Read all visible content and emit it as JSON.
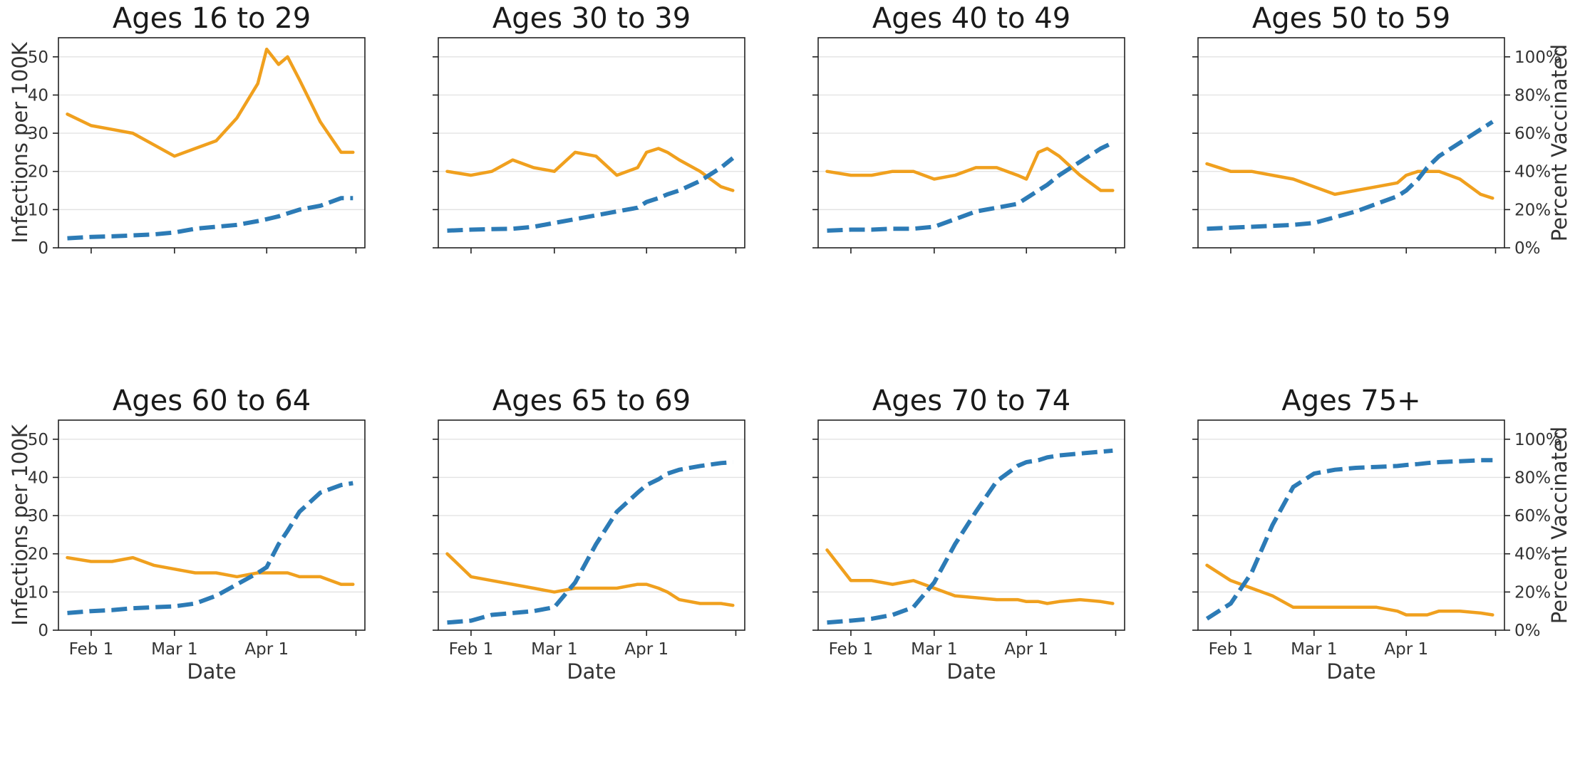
{
  "figure": {
    "left_axis_label": "Infections per 100K",
    "right_axis_label": "Percent Vaccinated",
    "x_axis_label": "Date",
    "x_tick_labels": [
      "Feb 1",
      "Mar 1",
      "Apr 1"
    ],
    "colors": {
      "infections": "#f0a01e",
      "vaccinated": "#2c7bb6"
    }
  },
  "chart_data": [
    {
      "type": "line",
      "title": "Ages 16 to 29",
      "x": [
        "2021-01-24",
        "2021-02-01",
        "2021-02-08",
        "2021-02-15",
        "2021-02-22",
        "2021-03-01",
        "2021-03-08",
        "2021-03-15",
        "2021-03-22",
        "2021-03-29",
        "2021-04-01",
        "2021-04-05",
        "2021-04-08",
        "2021-04-12",
        "2021-04-19",
        "2021-04-26",
        "2021-04-30"
      ],
      "series": [
        {
          "axis": "left",
          "y": [
            35,
            32,
            31,
            30,
            27,
            24,
            26,
            28,
            34,
            43,
            52,
            48,
            50,
            44,
            33,
            25,
            25
          ]
        },
        {
          "axis": "right",
          "y": [
            5,
            5.7,
            6,
            6.5,
            7,
            8,
            10,
            11,
            12,
            14,
            15,
            16.5,
            18,
            20,
            22,
            26,
            26
          ]
        }
      ]
    },
    {
      "type": "line",
      "title": "Ages 30 to 39",
      "x": [
        "2021-01-24",
        "2021-02-01",
        "2021-02-08",
        "2021-02-15",
        "2021-02-22",
        "2021-03-01",
        "2021-03-08",
        "2021-03-15",
        "2021-03-22",
        "2021-03-29",
        "2021-04-01",
        "2021-04-05",
        "2021-04-08",
        "2021-04-12",
        "2021-04-19",
        "2021-04-26",
        "2021-04-30"
      ],
      "series": [
        {
          "axis": "left",
          "y": [
            20,
            19,
            20,
            23,
            21,
            20,
            25,
            24,
            19,
            21,
            25,
            26,
            25,
            23,
            20,
            16,
            15
          ]
        },
        {
          "axis": "right",
          "y": [
            9,
            9.5,
            9.8,
            10,
            11,
            13,
            15,
            17,
            19,
            21,
            24,
            26,
            28,
            30,
            35,
            42,
            47
          ]
        }
      ]
    },
    {
      "type": "line",
      "title": "Ages 40 to 49",
      "x": [
        "2021-01-24",
        "2021-02-01",
        "2021-02-08",
        "2021-02-15",
        "2021-02-22",
        "2021-03-01",
        "2021-03-08",
        "2021-03-15",
        "2021-03-22",
        "2021-03-29",
        "2021-04-01",
        "2021-04-05",
        "2021-04-08",
        "2021-04-12",
        "2021-04-19",
        "2021-04-26",
        "2021-04-30"
      ],
      "series": [
        {
          "axis": "left",
          "y": [
            20,
            19,
            19,
            20,
            20,
            18,
            19,
            21,
            21,
            19,
            18,
            25,
            26,
            24,
            19,
            15,
            15
          ]
        },
        {
          "axis": "right",
          "y": [
            9,
            9.5,
            9.5,
            10,
            10,
            11,
            15,
            19,
            21,
            23,
            26,
            30,
            33,
            38,
            45,
            52,
            55
          ]
        }
      ]
    },
    {
      "type": "line",
      "title": "Ages 50 to 59",
      "x": [
        "2021-01-24",
        "2021-02-01",
        "2021-02-08",
        "2021-02-15",
        "2021-02-22",
        "2021-03-01",
        "2021-03-08",
        "2021-03-15",
        "2021-03-22",
        "2021-03-29",
        "2021-04-01",
        "2021-04-05",
        "2021-04-08",
        "2021-04-12",
        "2021-04-19",
        "2021-04-26",
        "2021-04-30"
      ],
      "series": [
        {
          "axis": "left",
          "y": [
            22,
            20,
            20,
            19,
            18,
            16,
            14,
            15,
            16,
            17,
            19,
            20,
            20,
            20,
            18,
            14,
            13
          ]
        },
        {
          "axis": "right",
          "y": [
            10,
            10.5,
            11,
            11.5,
            12,
            13,
            16,
            19,
            23,
            27,
            30,
            36,
            42,
            48,
            55,
            62,
            66
          ]
        }
      ]
    },
    {
      "type": "line",
      "title": "Ages 60 to 64",
      "x": [
        "2021-01-24",
        "2021-02-01",
        "2021-02-08",
        "2021-02-15",
        "2021-02-22",
        "2021-03-01",
        "2021-03-08",
        "2021-03-15",
        "2021-03-22",
        "2021-03-29",
        "2021-04-01",
        "2021-04-05",
        "2021-04-08",
        "2021-04-12",
        "2021-04-19",
        "2021-04-26",
        "2021-04-30"
      ],
      "series": [
        {
          "axis": "left",
          "y": [
            19,
            18,
            18,
            19,
            17,
            16,
            15,
            15,
            14,
            15,
            15,
            15,
            15,
            14,
            14,
            12,
            12
          ]
        },
        {
          "axis": "right",
          "y": [
            9,
            10,
            10.5,
            11.5,
            12,
            12.5,
            14,
            18,
            24,
            30,
            33,
            45,
            52,
            62,
            72,
            76,
            77
          ]
        }
      ]
    },
    {
      "type": "line",
      "title": "Ages 65 to 69",
      "x": [
        "2021-01-24",
        "2021-02-01",
        "2021-02-08",
        "2021-02-15",
        "2021-02-22",
        "2021-03-01",
        "2021-03-08",
        "2021-03-15",
        "2021-03-22",
        "2021-03-29",
        "2021-04-01",
        "2021-04-05",
        "2021-04-08",
        "2021-04-12",
        "2021-04-19",
        "2021-04-26",
        "2021-04-30"
      ],
      "series": [
        {
          "axis": "left",
          "y": [
            20,
            14,
            13,
            12,
            11,
            10,
            11,
            11,
            11,
            12,
            12,
            11,
            10,
            8,
            7,
            7,
            6.5
          ]
        },
        {
          "axis": "right",
          "y": [
            4,
            5,
            8,
            9,
            10,
            12,
            25,
            45,
            62,
            72,
            76,
            79,
            82,
            84,
            86,
            87.5,
            88
          ]
        }
      ]
    },
    {
      "type": "line",
      "title": "Ages 70 to 74",
      "x": [
        "2021-01-24",
        "2021-02-01",
        "2021-02-08",
        "2021-02-15",
        "2021-02-22",
        "2021-03-01",
        "2021-03-08",
        "2021-03-15",
        "2021-03-22",
        "2021-03-29",
        "2021-04-01",
        "2021-04-05",
        "2021-04-08",
        "2021-04-12",
        "2021-04-19",
        "2021-04-26",
        "2021-04-30"
      ],
      "series": [
        {
          "axis": "left",
          "y": [
            21,
            13,
            13,
            12,
            13,
            11,
            9,
            8.5,
            8,
            8,
            7.5,
            7.5,
            7,
            7.5,
            8,
            7.5,
            7
          ]
        },
        {
          "axis": "right",
          "y": [
            4,
            5,
            6,
            8,
            12,
            25,
            45,
            62,
            78,
            86,
            88,
            89,
            90.5,
            91.5,
            92.5,
            93.5,
            94
          ]
        }
      ]
    },
    {
      "type": "line",
      "title": "Ages 75+",
      "x": [
        "2021-01-24",
        "2021-02-01",
        "2021-02-08",
        "2021-02-15",
        "2021-02-22",
        "2021-03-01",
        "2021-03-08",
        "2021-03-15",
        "2021-03-22",
        "2021-03-29",
        "2021-04-01",
        "2021-04-05",
        "2021-04-08",
        "2021-04-12",
        "2021-04-19",
        "2021-04-26",
        "2021-04-30"
      ],
      "series": [
        {
          "axis": "left",
          "y": [
            17,
            13,
            11,
            9,
            6,
            6,
            6,
            6,
            6,
            5,
            4,
            4,
            4,
            5,
            5,
            4.5,
            4
          ]
        },
        {
          "axis": "right",
          "y": [
            6,
            14,
            30,
            55,
            75,
            82,
            84,
            85,
            85.5,
            86,
            86.5,
            87,
            87.5,
            88,
            88.5,
            89,
            89
          ]
        }
      ]
    }
  ],
  "axes": {
    "left_ylim": [
      0,
      55
    ],
    "left_ticks": [
      0,
      10,
      20,
      30,
      40,
      50
    ],
    "right_ylim": [
      0,
      110
    ],
    "right_ticks": [
      "0%",
      "20%",
      "40%",
      "60%",
      "80%",
      "100%"
    ],
    "x_range": [
      "2021-01-21",
      "2021-05-04"
    ],
    "x_ticks": [
      "2021-02-01",
      "2021-03-01",
      "2021-04-01"
    ],
    "minor_tick": "2021-05-01",
    "grid": "horizontal"
  }
}
